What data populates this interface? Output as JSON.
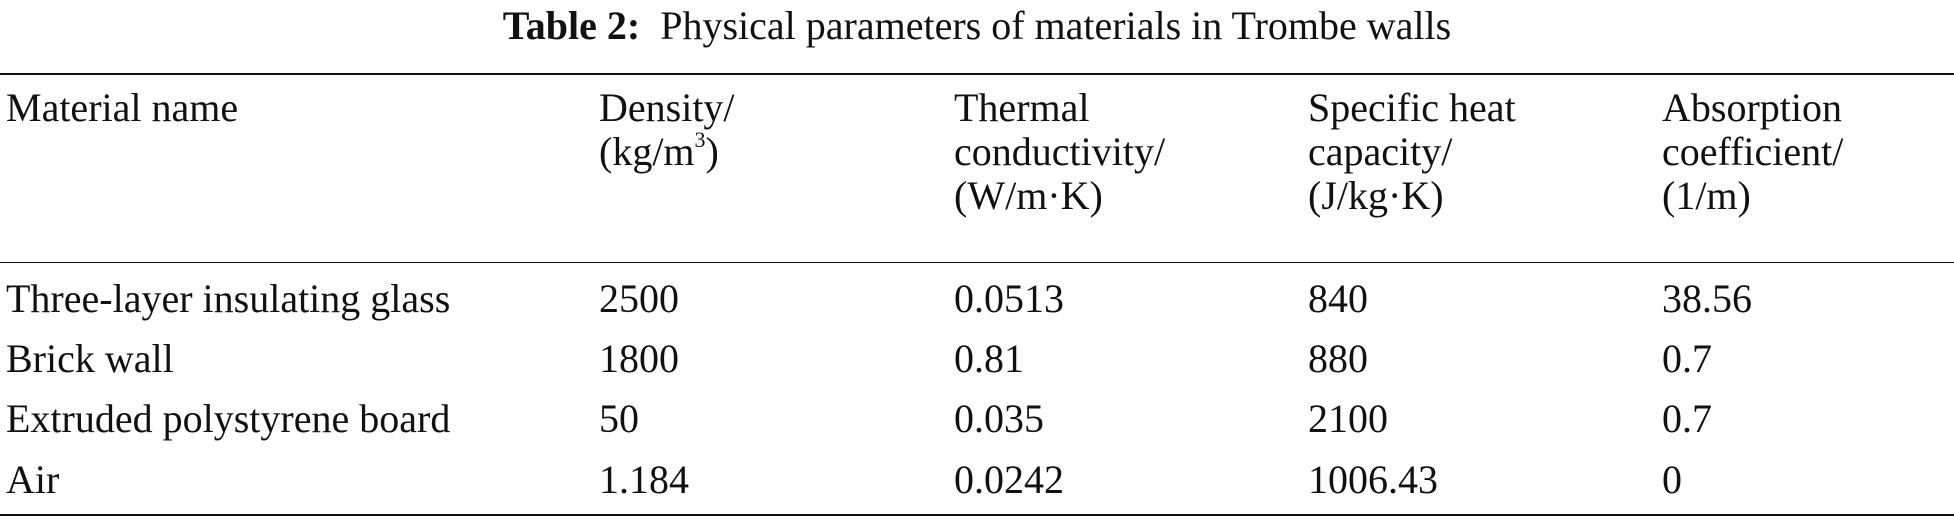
{
  "caption": {
    "label": "Table 2:",
    "text": "Physical parameters of materials in Trombe walls"
  },
  "table": {
    "headers": [
      {
        "lines": [
          "Material name"
        ]
      },
      {
        "lines": [
          "Density/",
          "(kg/m",
          "3",
          ")"
        ]
      },
      {
        "lines": [
          "Thermal",
          "conductivity/",
          "(W/m·K)"
        ]
      },
      {
        "lines": [
          "Specific heat",
          "capacity/",
          "(J/kg·K)"
        ]
      },
      {
        "lines": [
          "Absorption",
          "coefficient/",
          "(1/m)"
        ]
      }
    ],
    "rows": [
      [
        "Three-layer insulating glass",
        "2500",
        "0.0513",
        "840",
        "38.56"
      ],
      [
        "Brick wall",
        "1800",
        "0.81",
        "880",
        "0.7"
      ],
      [
        "Extruded polystyrene board",
        "50",
        "0.035",
        "2100",
        "0.7"
      ],
      [
        "Air",
        "1.184",
        "0.0242",
        "1006.43",
        "0"
      ]
    ]
  }
}
